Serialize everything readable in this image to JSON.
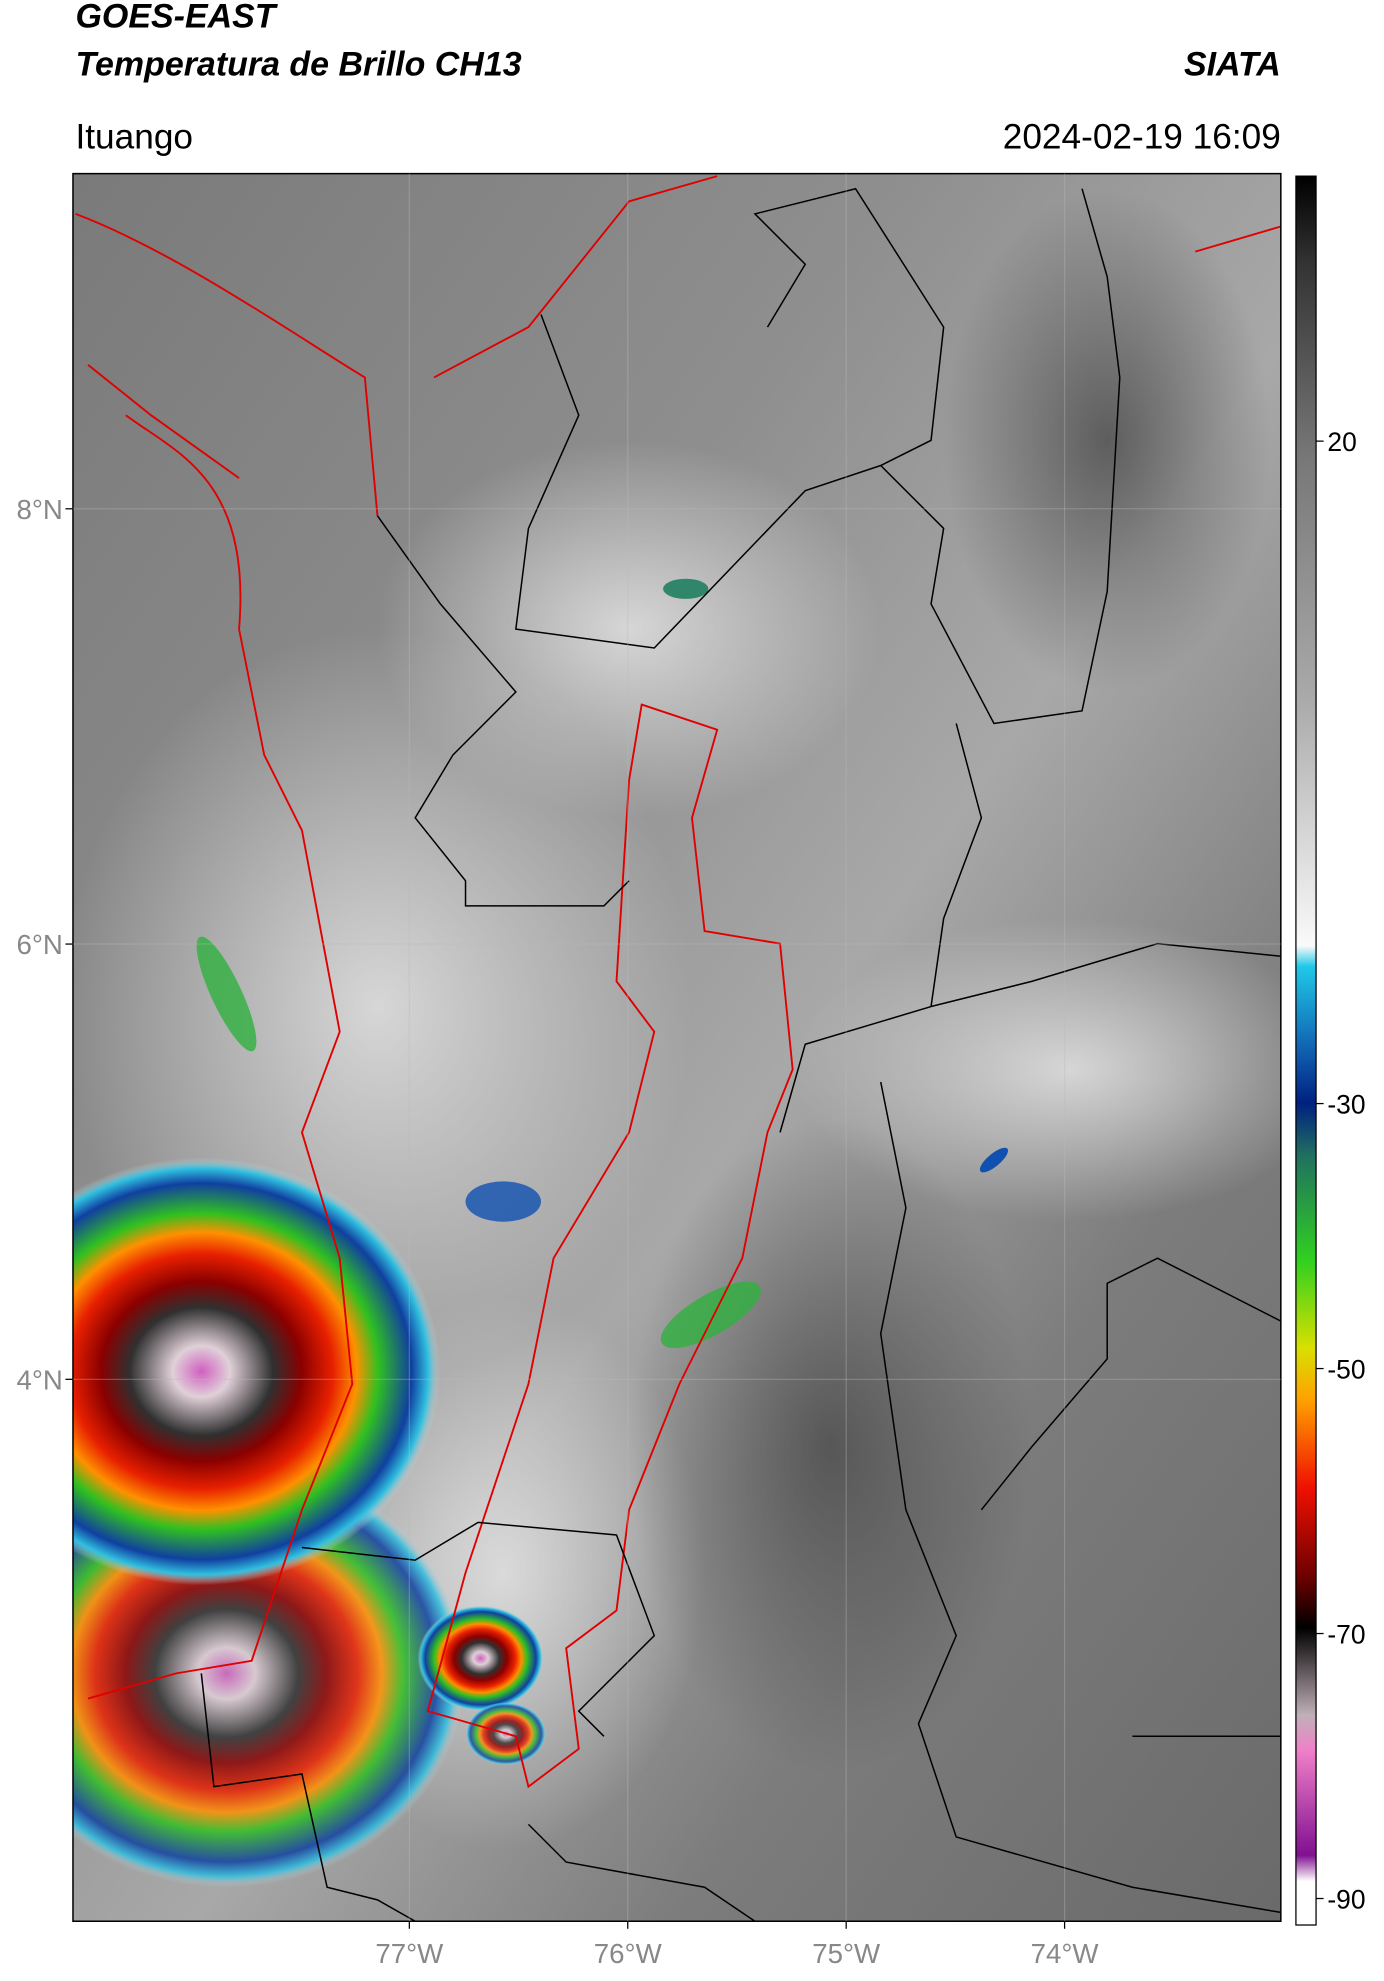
{
  "header": {
    "satellite": "GOES-EAST",
    "product": "Temperatura de Brillo CH13",
    "organization": "SIATA",
    "location": "Ituango",
    "datetime": "2024-02-19 16:09"
  },
  "map": {
    "latlim": [
      1.51,
      9.54
    ],
    "lonlim": [
      -78.54,
      -73.01
    ],
    "lat_ticks": [
      {
        "value": 8,
        "label": "8°N"
      },
      {
        "value": 6,
        "label": "6°N"
      },
      {
        "value": 4,
        "label": "4°N"
      }
    ],
    "lon_ticks": [
      {
        "value": -77,
        "label": "77°W"
      },
      {
        "value": -76,
        "label": "76°W"
      },
      {
        "value": -75,
        "label": "75°W"
      },
      {
        "value": -74,
        "label": "74°W"
      }
    ],
    "grid": true
  },
  "colorbar": {
    "lim": [
      -92,
      40
    ],
    "ticks": [
      20,
      -30,
      -50,
      -70,
      -90
    ]
  }
}
